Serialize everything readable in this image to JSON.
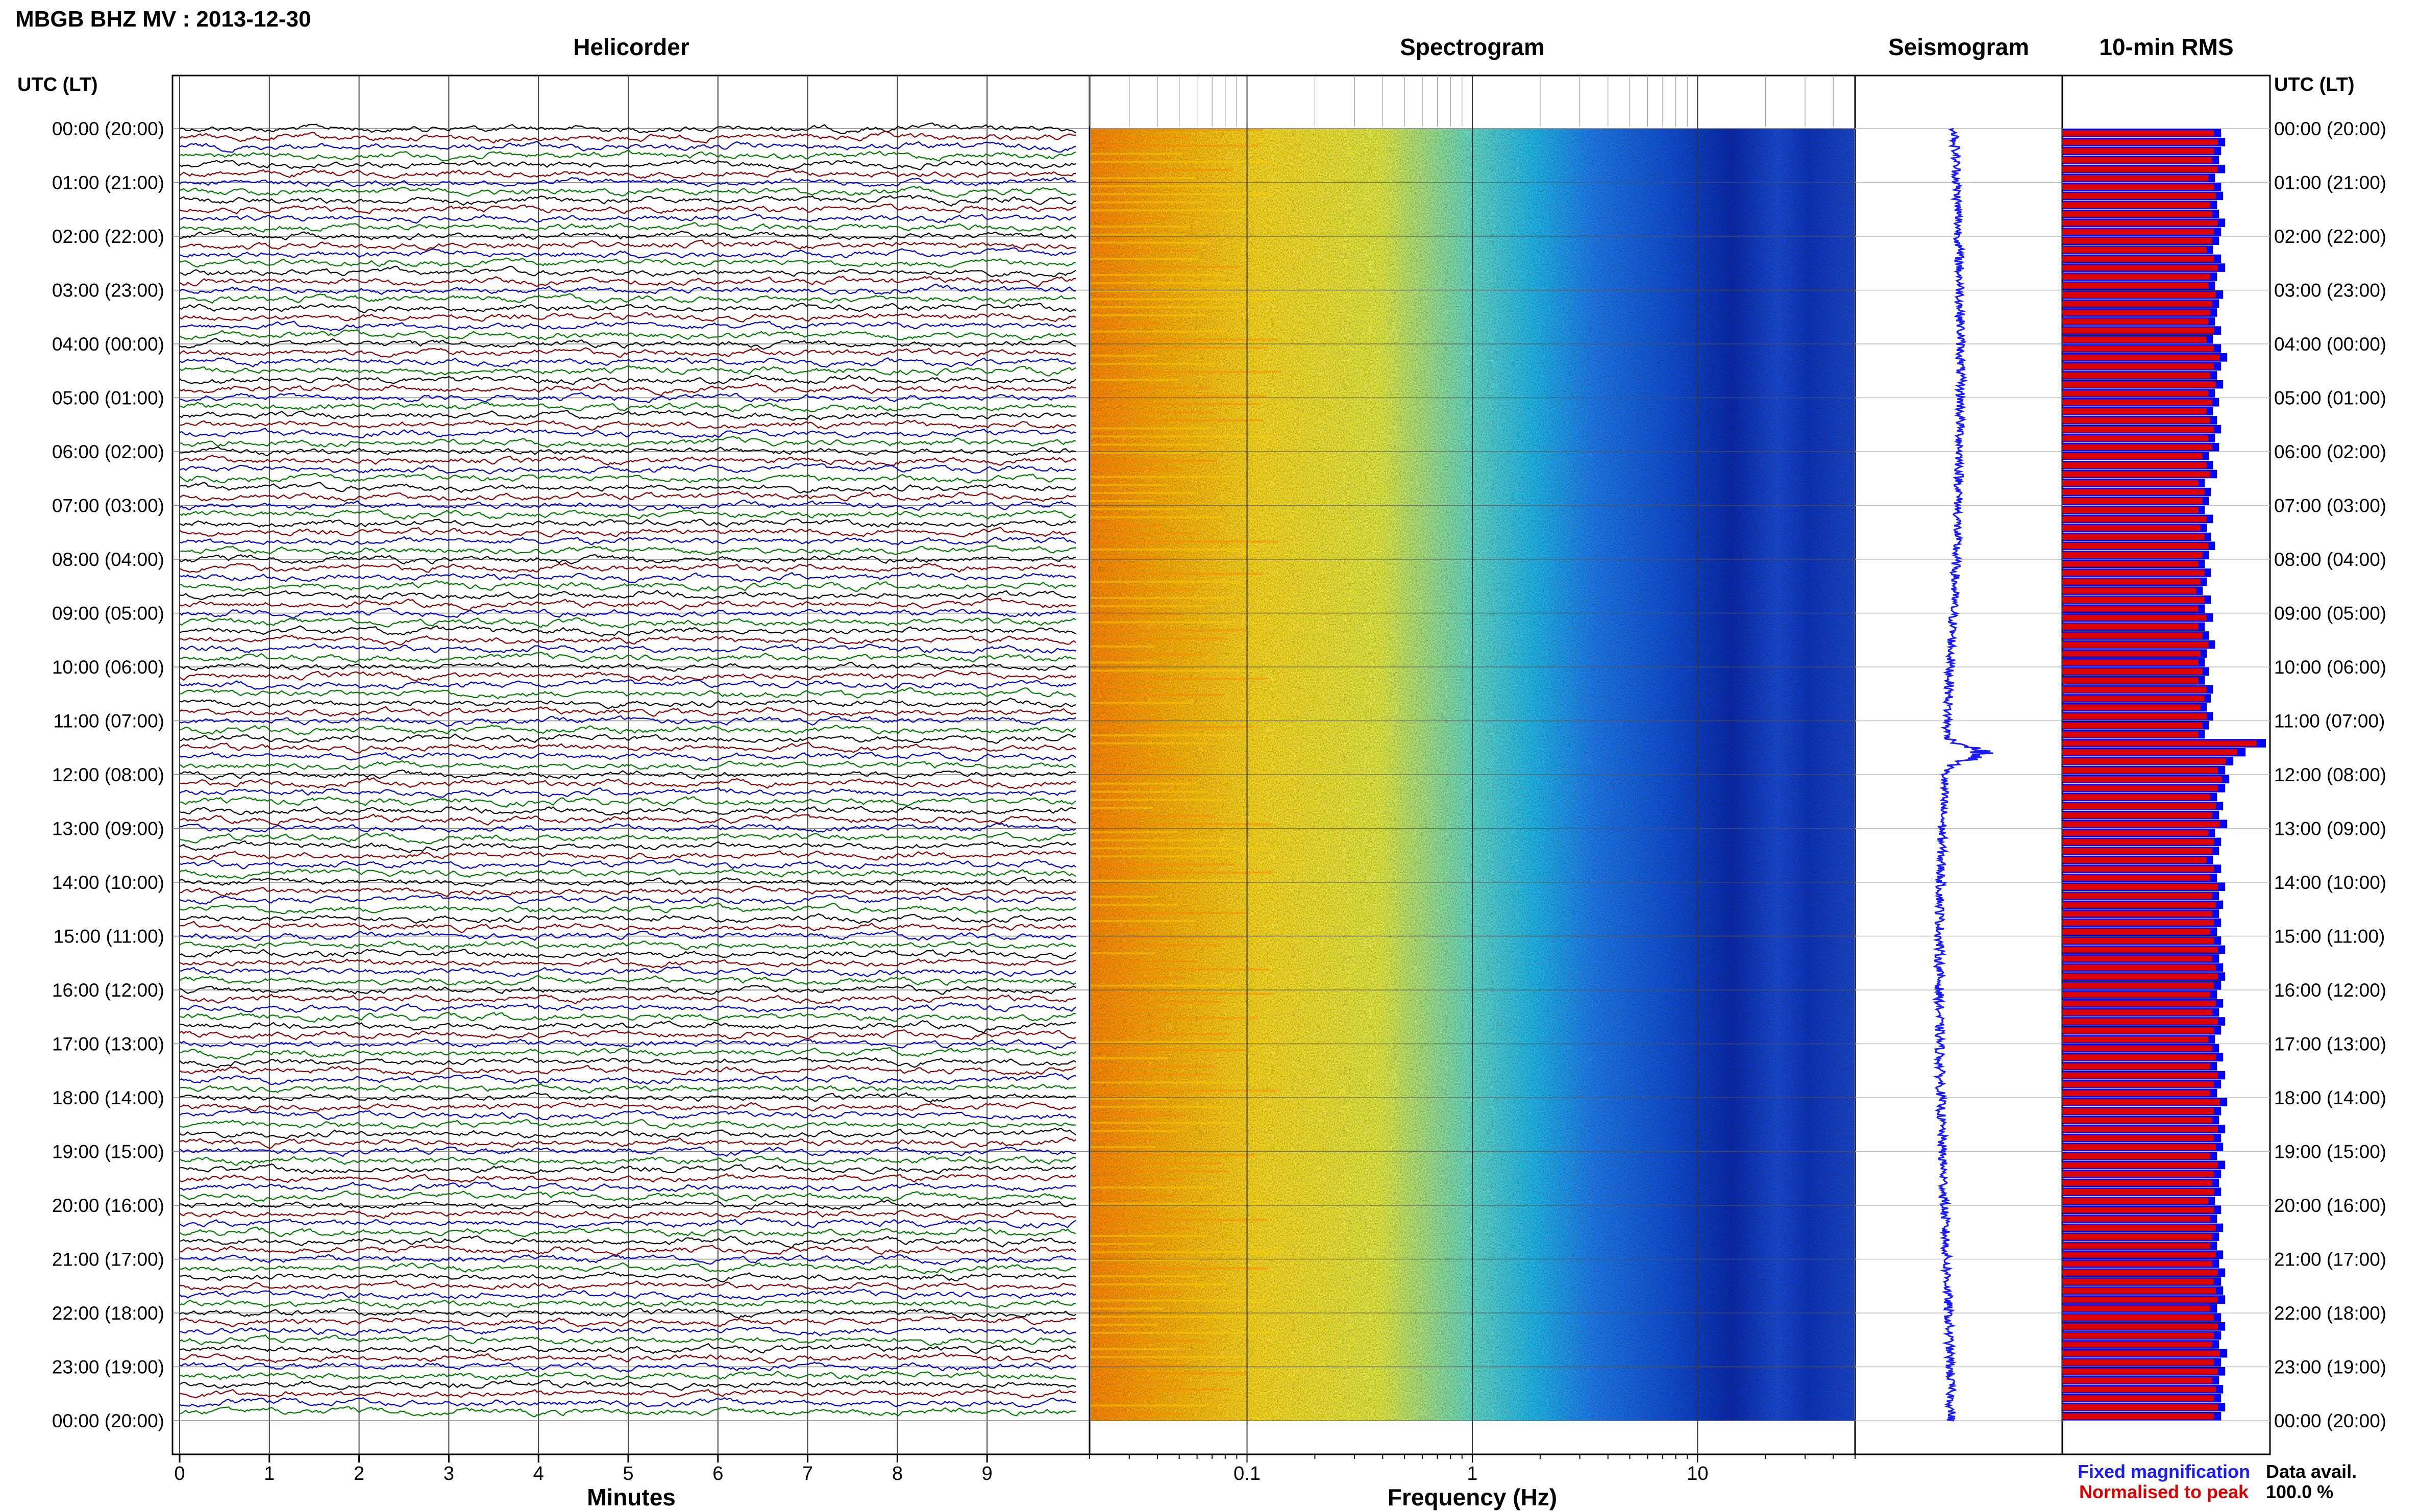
{
  "header": {
    "title": "MBGB BHZ MV : 2013-12-30"
  },
  "panels": {
    "helicorder": "Helicorder",
    "spectrogram": "Spectrogram",
    "seismogram": "Seismogram",
    "rms": "10-min RMS"
  },
  "axes": {
    "left_time_label": "UTC (LT)",
    "right_time_label": "UTC (LT)",
    "helicorder_xlabel": "Minutes",
    "spectrogram_xlabel": "Frequency (Hz)"
  },
  "legend": {
    "fixed": "Fixed magnification",
    "normalised": "Normalised to peak"
  },
  "footer": {
    "data_avail_label": "Data avail.",
    "data_avail_value": "100.0 %"
  },
  "colors": {
    "helicorder_traces": [
      "#000000",
      "#8b0000",
      "#0000cc",
      "#007a00"
    ],
    "seismogram": "#1a1aff",
    "rms_fixed": "#0000ff",
    "rms_normalised": "#dd0000",
    "grid": "#888888"
  },
  "chart_data": [
    {
      "type": "line",
      "name": "Helicorder",
      "xlabel": "Minutes",
      "xlim": [
        0,
        10
      ],
      "x_ticks": [
        "0",
        "1",
        "2",
        "3",
        "4",
        "5",
        "6",
        "7",
        "8",
        "9"
      ],
      "time_labels": [
        "00:00 (20:00)",
        "01:00 (21:00)",
        "02:00 (22:00)",
        "03:00 (23:00)",
        "04:00 (00:00)",
        "05:00 (01:00)",
        "06:00 (02:00)",
        "07:00 (03:00)",
        "08:00 (04:00)",
        "09:00 (05:00)",
        "10:00 (06:00)",
        "11:00 (07:00)",
        "12:00 (08:00)",
        "13:00 (09:00)",
        "14:00 (10:00)",
        "15:00 (11:00)",
        "16:00 (12:00)",
        "17:00 (13:00)",
        "18:00 (14:00)",
        "19:00 (15:00)",
        "20:00 (16:00)",
        "21:00 (17:00)",
        "22:00 (18:00)",
        "23:00 (19:00)",
        "00:00 (20:00)"
      ],
      "traces_per_hour": 6,
      "trace_color_cycle": [
        "black",
        "darkred",
        "blue",
        "green"
      ]
    },
    {
      "type": "heatmap",
      "name": "Spectrogram",
      "xlabel": "Frequency (Hz)",
      "x_scale": "log",
      "xlim": [
        0.02,
        50
      ],
      "x_ticks": [
        "0.1",
        "1",
        "10"
      ],
      "hours": 24,
      "colormap": [
        "#ff9900",
        "#ffee33",
        "#33ddee",
        "#2277ff",
        "#0a2ab0"
      ]
    },
    {
      "type": "line",
      "name": "Seismogram",
      "hours": 24,
      "peak_hour": 11.6
    },
    {
      "type": "bar",
      "name": "10-min RMS",
      "series": [
        {
          "name": "Fixed magnification",
          "color": "#0000ff"
        },
        {
          "name": "Normalised to peak",
          "color": "#dd0000"
        }
      ],
      "values": [
        0.78,
        0.8,
        0.78,
        0.77,
        0.8,
        0.75,
        0.78,
        0.79,
        0.76,
        0.77,
        0.8,
        0.78,
        0.77,
        0.74,
        0.78,
        0.8,
        0.76,
        0.75,
        0.79,
        0.77,
        0.76,
        0.75,
        0.78,
        0.74,
        0.78,
        0.81,
        0.78,
        0.76,
        0.79,
        0.75,
        0.77,
        0.74,
        0.76,
        0.78,
        0.75,
        0.77,
        0.72,
        0.74,
        0.76,
        0.7,
        0.73,
        0.72,
        0.7,
        0.74,
        0.71,
        0.73,
        0.75,
        0.72,
        0.7,
        0.73,
        0.71,
        0.69,
        0.73,
        0.7,
        0.74,
        0.7,
        0.72,
        0.75,
        0.71,
        0.7,
        0.72,
        0.7,
        0.74,
        0.73,
        0.71,
        0.74,
        0.72,
        0.7,
        1.0,
        0.9,
        0.84,
        0.8,
        0.82,
        0.8,
        0.76,
        0.79,
        0.77,
        0.81,
        0.75,
        0.78,
        0.77,
        0.74,
        0.78,
        0.76,
        0.8,
        0.77,
        0.79,
        0.77,
        0.78,
        0.76,
        0.78,
        0.8,
        0.77,
        0.79,
        0.8,
        0.78,
        0.76,
        0.79,
        0.77,
        0.8,
        0.78,
        0.75,
        0.77,
        0.79,
        0.76,
        0.8,
        0.78,
        0.76,
        0.81,
        0.78,
        0.77,
        0.8,
        0.78,
        0.79,
        0.76,
        0.8,
        0.78,
        0.77,
        0.78,
        0.75,
        0.78,
        0.76,
        0.79,
        0.77,
        0.76,
        0.79,
        0.77,
        0.8,
        0.78,
        0.79,
        0.8,
        0.76,
        0.78,
        0.8,
        0.78,
        0.77,
        0.81,
        0.78,
        0.8,
        0.77,
        0.79,
        0.78,
        0.8,
        0.78
      ]
    }
  ]
}
